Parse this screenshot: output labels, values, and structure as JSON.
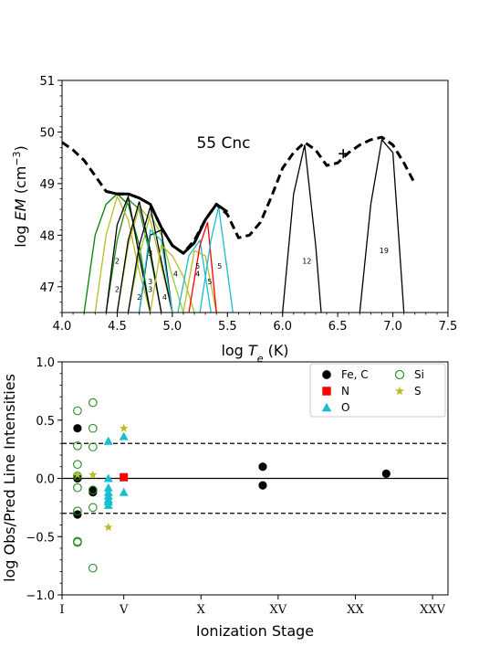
{
  "chart_data": [
    {
      "type": "line",
      "title": "55 Cnc",
      "xlabel": "log T_e (K)",
      "ylabel": "log EM (cm^-3)",
      "xlim": [
        4.0,
        7.5
      ],
      "ylim": [
        46.5,
        51
      ],
      "xticks": [
        "4.0",
        "4.5",
        "5.0",
        "5.5",
        "6.0",
        "6.5",
        "7.0",
        "7.5"
      ],
      "yticks": [
        "47",
        "48",
        "49",
        "50",
        "51"
      ],
      "series": [
        {
          "style": "dashed",
          "color": "#000000",
          "x": [
            4.0,
            4.1,
            4.2,
            4.3,
            4.4,
            4.5,
            4.6,
            4.7,
            4.8,
            4.9,
            5.0,
            5.1,
            5.2,
            5.3,
            5.4,
            5.5,
            5.6,
            5.7,
            5.8,
            5.9,
            6.0,
            6.1,
            6.2,
            6.3,
            6.4,
            6.5,
            6.6,
            6.7,
            6.8,
            6.9,
            7.0,
            7.1,
            7.2
          ],
          "y": [
            49.8,
            49.65,
            49.45,
            49.15,
            48.85,
            48.8,
            48.8,
            48.72,
            48.6,
            48.15,
            47.8,
            47.65,
            47.9,
            48.3,
            48.6,
            48.4,
            47.95,
            48.0,
            48.25,
            48.75,
            49.3,
            49.6,
            49.8,
            49.65,
            49.35,
            49.4,
            49.6,
            49.75,
            49.85,
            49.9,
            49.75,
            49.4,
            49.0
          ]
        },
        {
          "style": "solid",
          "color": "#000000",
          "x": [
            4.4,
            4.5,
            4.6,
            4.7,
            4.8,
            4.9,
            5.0,
            5.1,
            5.2,
            5.3,
            5.4,
            5.5
          ],
          "y": [
            48.85,
            48.8,
            48.8,
            48.72,
            48.6,
            48.15,
            47.8,
            47.65,
            47.85,
            48.3,
            48.6,
            48.45
          ]
        }
      ],
      "contribution_curves": [
        {
          "color": "#008000",
          "x": [
            4.2,
            4.3,
            4.4,
            4.5,
            4.6,
            4.7,
            4.8
          ],
          "y": [
            46.5,
            48.0,
            48.6,
            48.8,
            48.6,
            47.8,
            46.5
          ]
        },
        {
          "color": "#228B22",
          "x": [
            4.4,
            4.5,
            4.6,
            4.7,
            4.8,
            4.9
          ],
          "y": [
            46.5,
            47.9,
            48.7,
            48.5,
            47.6,
            46.5
          ]
        },
        {
          "color": "#BCBD22",
          "x": [
            4.3,
            4.4,
            4.5,
            4.6,
            4.7,
            4.8
          ],
          "y": [
            46.5,
            48.0,
            48.75,
            48.3,
            47.3,
            46.5
          ]
        },
        {
          "color": "#BCBD22",
          "x": [
            4.5,
            4.6,
            4.7,
            4.8,
            4.9,
            5.0
          ],
          "y": [
            46.5,
            47.8,
            48.55,
            48.3,
            47.4,
            46.5
          ]
        },
        {
          "color": "#9ACD32",
          "x": [
            4.6,
            4.7,
            4.8,
            4.9,
            5.0,
            5.1
          ],
          "y": [
            46.5,
            47.6,
            48.4,
            48.0,
            47.2,
            46.5
          ]
        },
        {
          "color": "#000000",
          "x": [
            4.4,
            4.5,
            4.6,
            4.7,
            4.8
          ],
          "y": [
            46.5,
            48.2,
            48.75,
            47.6,
            46.5
          ]
        },
        {
          "color": "#000000",
          "x": [
            4.5,
            4.6,
            4.7,
            4.8,
            4.9
          ],
          "y": [
            46.5,
            47.9,
            48.65,
            47.7,
            46.5
          ]
        },
        {
          "color": "#000000",
          "x": [
            4.6,
            4.7,
            4.8,
            4.9,
            5.0
          ],
          "y": [
            46.5,
            47.8,
            48.55,
            47.5,
            46.5
          ]
        },
        {
          "color": "#000000",
          "x": [
            4.7,
            4.8,
            4.9,
            5.0
          ],
          "y": [
            46.5,
            48.0,
            48.1,
            46.5
          ]
        },
        {
          "color": "#17BECF",
          "x": [
            4.7,
            4.8,
            4.9,
            5.0
          ],
          "y": [
            46.5,
            48.1,
            47.9,
            46.5
          ]
        },
        {
          "color": "#BCBD22",
          "x": [
            4.8,
            4.9,
            5.0,
            5.1,
            5.2
          ],
          "y": [
            46.5,
            47.8,
            47.6,
            47.2,
            46.5
          ]
        },
        {
          "color": "#17BECF",
          "x": [
            5.05,
            5.15,
            5.25,
            5.35
          ],
          "y": [
            46.5,
            47.6,
            47.9,
            46.5
          ]
        },
        {
          "color": "#BCBD22",
          "x": [
            5.1,
            5.2,
            5.3,
            5.4
          ],
          "y": [
            46.5,
            47.7,
            47.6,
            46.5
          ]
        },
        {
          "color": "#FF0000",
          "x": [
            5.15,
            5.25,
            5.32,
            5.4
          ],
          "y": [
            46.5,
            47.8,
            48.25,
            46.5
          ]
        },
        {
          "color": "#17BECF",
          "x": [
            5.25,
            5.35,
            5.42,
            5.55
          ],
          "y": [
            46.5,
            47.9,
            48.55,
            46.5
          ]
        },
        {
          "color": "#000000",
          "x": [
            6.0,
            6.1,
            6.2,
            6.3,
            6.35
          ],
          "y": [
            46.5,
            48.8,
            49.75,
            47.8,
            46.5
          ]
        },
        {
          "color": "#000000",
          "x": [
            6.7,
            6.8,
            6.9,
            7.0,
            7.1
          ],
          "y": [
            46.5,
            48.6,
            49.85,
            49.6,
            46.5
          ]
        }
      ],
      "annotations": [
        {
          "text": "2",
          "x": 4.5,
          "y": 47.45
        },
        {
          "text": "2",
          "x": 4.5,
          "y": 46.9
        },
        {
          "text": "2",
          "x": 4.7,
          "y": 46.75
        },
        {
          "text": "3",
          "x": 4.8,
          "y": 47.6
        },
        {
          "text": "3",
          "x": 4.8,
          "y": 47.05
        },
        {
          "text": "3",
          "x": 4.8,
          "y": 46.9
        },
        {
          "text": "4",
          "x": 4.93,
          "y": 46.75
        },
        {
          "text": "4",
          "x": 5.03,
          "y": 47.2
        },
        {
          "text": "5",
          "x": 5.23,
          "y": 47.35
        },
        {
          "text": "4",
          "x": 5.23,
          "y": 47.2
        },
        {
          "text": "5",
          "x": 5.34,
          "y": 47.05
        },
        {
          "text": "5",
          "x": 5.43,
          "y": 47.35
        },
        {
          "text": "12",
          "x": 6.22,
          "y": 47.45
        },
        {
          "text": "19",
          "x": 6.92,
          "y": 47.65
        }
      ],
      "marker": {
        "type": "plus",
        "x": 6.55,
        "y": 49.58
      }
    },
    {
      "type": "scatter",
      "xlabel": "Ionization Stage",
      "ylabel": "log Obs/Pred Line Intensities",
      "xlim": [
        1,
        26
      ],
      "ylim": [
        -1.0,
        1.0
      ],
      "xticks": [
        "I",
        "V",
        "X",
        "XV",
        "XX",
        "XXV"
      ],
      "yticks": [
        "−1.0",
        "−0.5",
        "0.0",
        "0.5",
        "1.0"
      ],
      "reference_lines": [
        {
          "y": 0.0,
          "style": "solid"
        },
        {
          "y": 0.3,
          "style": "dashed"
        },
        {
          "y": -0.3,
          "style": "dashed"
        }
      ],
      "legend_position": "top-right",
      "series": [
        {
          "name": "Fe, C",
          "marker": "filled-circle",
          "color": "#000000",
          "x": [
            2,
            2,
            2,
            3,
            3,
            14,
            14,
            22
          ],
          "y": [
            0.43,
            0.0,
            -0.31,
            -0.1,
            -0.12,
            0.1,
            -0.06,
            0.04
          ]
        },
        {
          "name": "N",
          "marker": "filled-square",
          "color": "#FF0000",
          "x": [
            5
          ],
          "y": [
            0.01
          ]
        },
        {
          "name": "O",
          "marker": "filled-triangle",
          "color": "#17BECF",
          "x": [
            4,
            4,
            4,
            4,
            4,
            4,
            4,
            4,
            5,
            5
          ],
          "y": [
            0.32,
            0.0,
            -0.08,
            -0.12,
            -0.15,
            -0.18,
            -0.2,
            -0.23,
            0.36,
            -0.12
          ]
        },
        {
          "name": "Si",
          "marker": "open-circle",
          "color": "#228B22",
          "x": [
            2,
            2,
            2,
            2,
            2,
            2,
            2,
            2,
            3,
            3,
            3,
            3,
            3,
            3
          ],
          "y": [
            0.58,
            0.28,
            0.12,
            0.02,
            -0.08,
            -0.28,
            -0.54,
            -0.55,
            0.65,
            0.43,
            0.27,
            -0.1,
            -0.25,
            -0.77
          ]
        },
        {
          "name": "S",
          "marker": "star",
          "color": "#BCBD22",
          "x": [
            2,
            3,
            4,
            5
          ],
          "y": [
            0.03,
            0.03,
            -0.42,
            0.43
          ]
        }
      ]
    }
  ]
}
